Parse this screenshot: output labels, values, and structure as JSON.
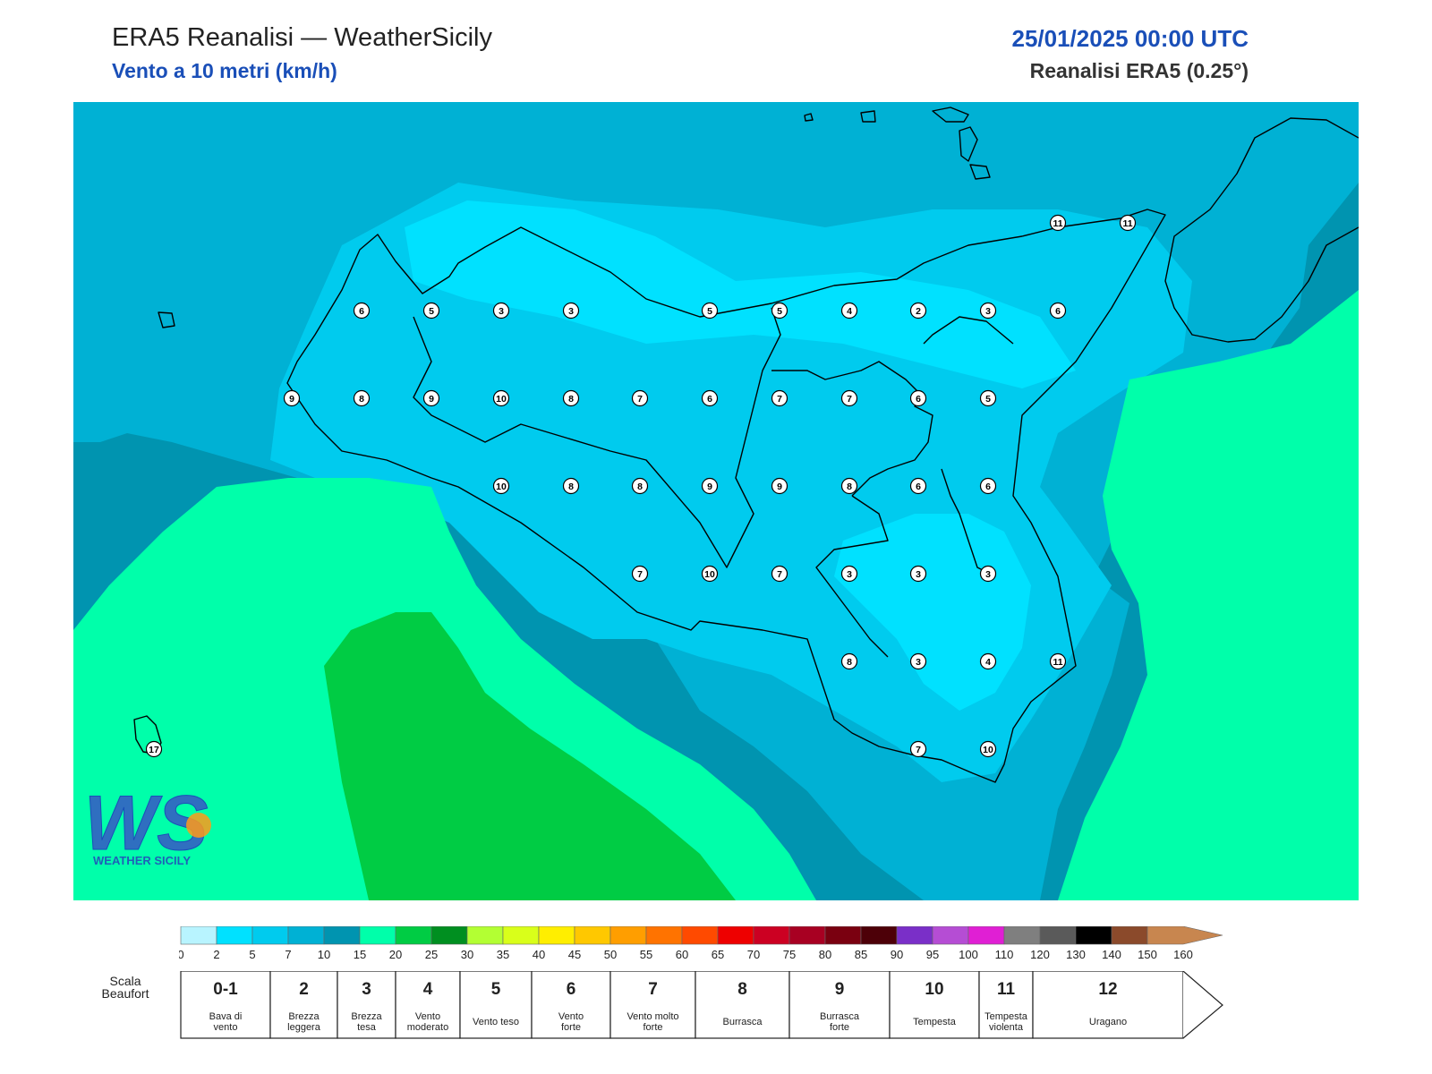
{
  "header": {
    "title": "ERA5 Reanalisi — WeatherSicily",
    "subtitle": "Vento a 10 metri (km/h)",
    "datetime": "25/01/2025 00:00 UTC",
    "source": "Reanalisi ERA5 (0.25°)"
  },
  "map": {
    "zone_colors": {
      "v2_5": "#00e1ff",
      "v5_7": "#00cbee",
      "v7_10": "#00b1d4",
      "v10_15": "#0094b0",
      "v15_20": "#00ffaa",
      "v20_25": "#00cc44"
    },
    "wind_markers": [
      {
        "v": "11"
      },
      {
        "v": "11"
      },
      {
        "v": "6"
      },
      {
        "v": "5"
      },
      {
        "v": "3"
      },
      {
        "v": "3"
      },
      {
        "v": "5"
      },
      {
        "v": "5"
      },
      {
        "v": "4"
      },
      {
        "v": "2"
      },
      {
        "v": "3"
      },
      {
        "v": "6"
      },
      {
        "v": "9"
      },
      {
        "v": "8"
      },
      {
        "v": "9"
      },
      {
        "v": "10"
      },
      {
        "v": "8"
      },
      {
        "v": "7"
      },
      {
        "v": "6"
      },
      {
        "v": "7"
      },
      {
        "v": "7"
      },
      {
        "v": "6"
      },
      {
        "v": "5"
      },
      {
        "v": "10"
      },
      {
        "v": "8"
      },
      {
        "v": "8"
      },
      {
        "v": "9"
      },
      {
        "v": "9"
      },
      {
        "v": "8"
      },
      {
        "v": "6"
      },
      {
        "v": "6"
      },
      {
        "v": "7"
      },
      {
        "v": "10"
      },
      {
        "v": "7"
      },
      {
        "v": "3"
      },
      {
        "v": "3"
      },
      {
        "v": "3"
      },
      {
        "v": "8"
      },
      {
        "v": "3"
      },
      {
        "v": "4"
      },
      {
        "v": "11"
      },
      {
        "v": "7"
      },
      {
        "v": "10"
      },
      {
        "v": "17"
      }
    ]
  },
  "logo": {
    "letters": "WS",
    "text": "WEATHER SICILY"
  },
  "colorbar": {
    "colors": [
      "#b8f4ff",
      "#00e1ff",
      "#00cbee",
      "#00b1d4",
      "#0094b0",
      "#00ffaa",
      "#00cc44",
      "#008f20",
      "#b3ff33",
      "#d9ff1a",
      "#ffee00",
      "#ffc800",
      "#ff9e00",
      "#ff7300",
      "#ff4a00",
      "#ee0000",
      "#cc0022",
      "#a80022",
      "#7a0010",
      "#4d0008",
      "#7a2fc8",
      "#b54dd4",
      "#e01fd4",
      "#7f7f7f",
      "#5a5a5a",
      "#000000",
      "#8b4a2b",
      "#c8864f"
    ],
    "ticks": [
      "0",
      "2",
      "5",
      "7",
      "10",
      "15",
      "20",
      "25",
      "30",
      "35",
      "40",
      "45",
      "50",
      "55",
      "60",
      "65",
      "70",
      "75",
      "80",
      "85",
      "90",
      "95",
      "100",
      "110",
      "120",
      "130",
      "140",
      "150",
      "160"
    ]
  },
  "beaufort": {
    "label_line1": "Scala",
    "label_line2": "Beaufort",
    "cells": [
      {
        "num": "0-1",
        "line1": "Bava di",
        "line2": "vento"
      },
      {
        "num": "2",
        "line1": "Brezza",
        "line2": "leggera"
      },
      {
        "num": "3",
        "line1": "Brezza",
        "line2": "tesa"
      },
      {
        "num": "4",
        "line1": "Vento",
        "line2": "moderato"
      },
      {
        "num": "5",
        "line1": "Vento teso",
        "line2": ""
      },
      {
        "num": "6",
        "line1": "Vento",
        "line2": "forte"
      },
      {
        "num": "7",
        "line1": "Vento molto",
        "line2": "forte"
      },
      {
        "num": "8",
        "line1": "Burrasca",
        "line2": ""
      },
      {
        "num": "9",
        "line1": "Burrasca",
        "line2": "forte"
      },
      {
        "num": "10",
        "line1": "Tempesta",
        "line2": ""
      },
      {
        "num": "11",
        "line1": "Tempesta",
        "line2": "violenta"
      },
      {
        "num": "12",
        "line1": "Uragano",
        "line2": ""
      }
    ]
  }
}
